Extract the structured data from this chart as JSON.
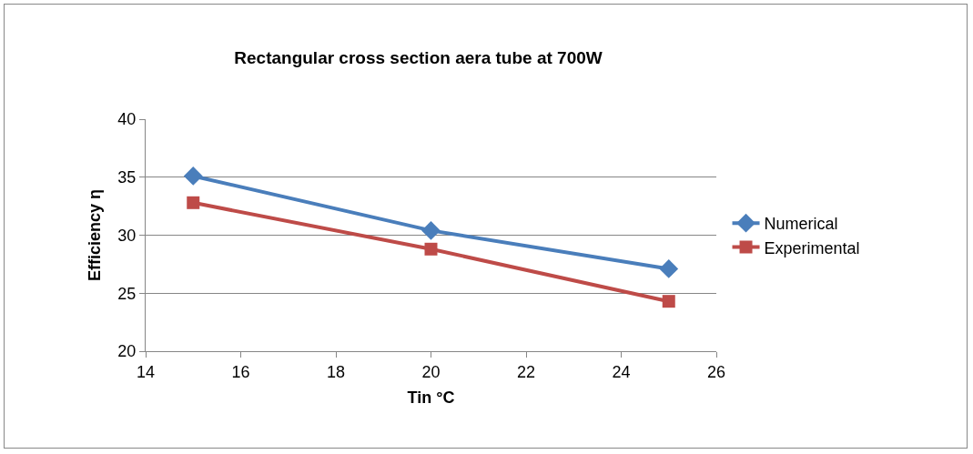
{
  "chart_data": {
    "type": "line",
    "title": "Rectangular cross section aera tube at 700W",
    "xlabel": "Tin °C",
    "ylabel": "Efficiency η",
    "x": [
      15,
      20,
      25
    ],
    "series": [
      {
        "name": "Numerical",
        "color": "#4a7ebb",
        "marker": "diamond",
        "values": [
          35.1,
          30.4,
          27.1
        ]
      },
      {
        "name": "Experimental",
        "color": "#be4b48",
        "marker": "square",
        "values": [
          32.8,
          28.8,
          24.3
        ]
      }
    ],
    "xlim": [
      14,
      26
    ],
    "xticks": [
      14,
      16,
      18,
      20,
      22,
      24,
      26
    ],
    "ylim": [
      20,
      40
    ],
    "yticks": [
      20,
      25,
      30,
      35,
      40
    ],
    "grid": "y",
    "legend": "right",
    "line_style": "solid"
  }
}
